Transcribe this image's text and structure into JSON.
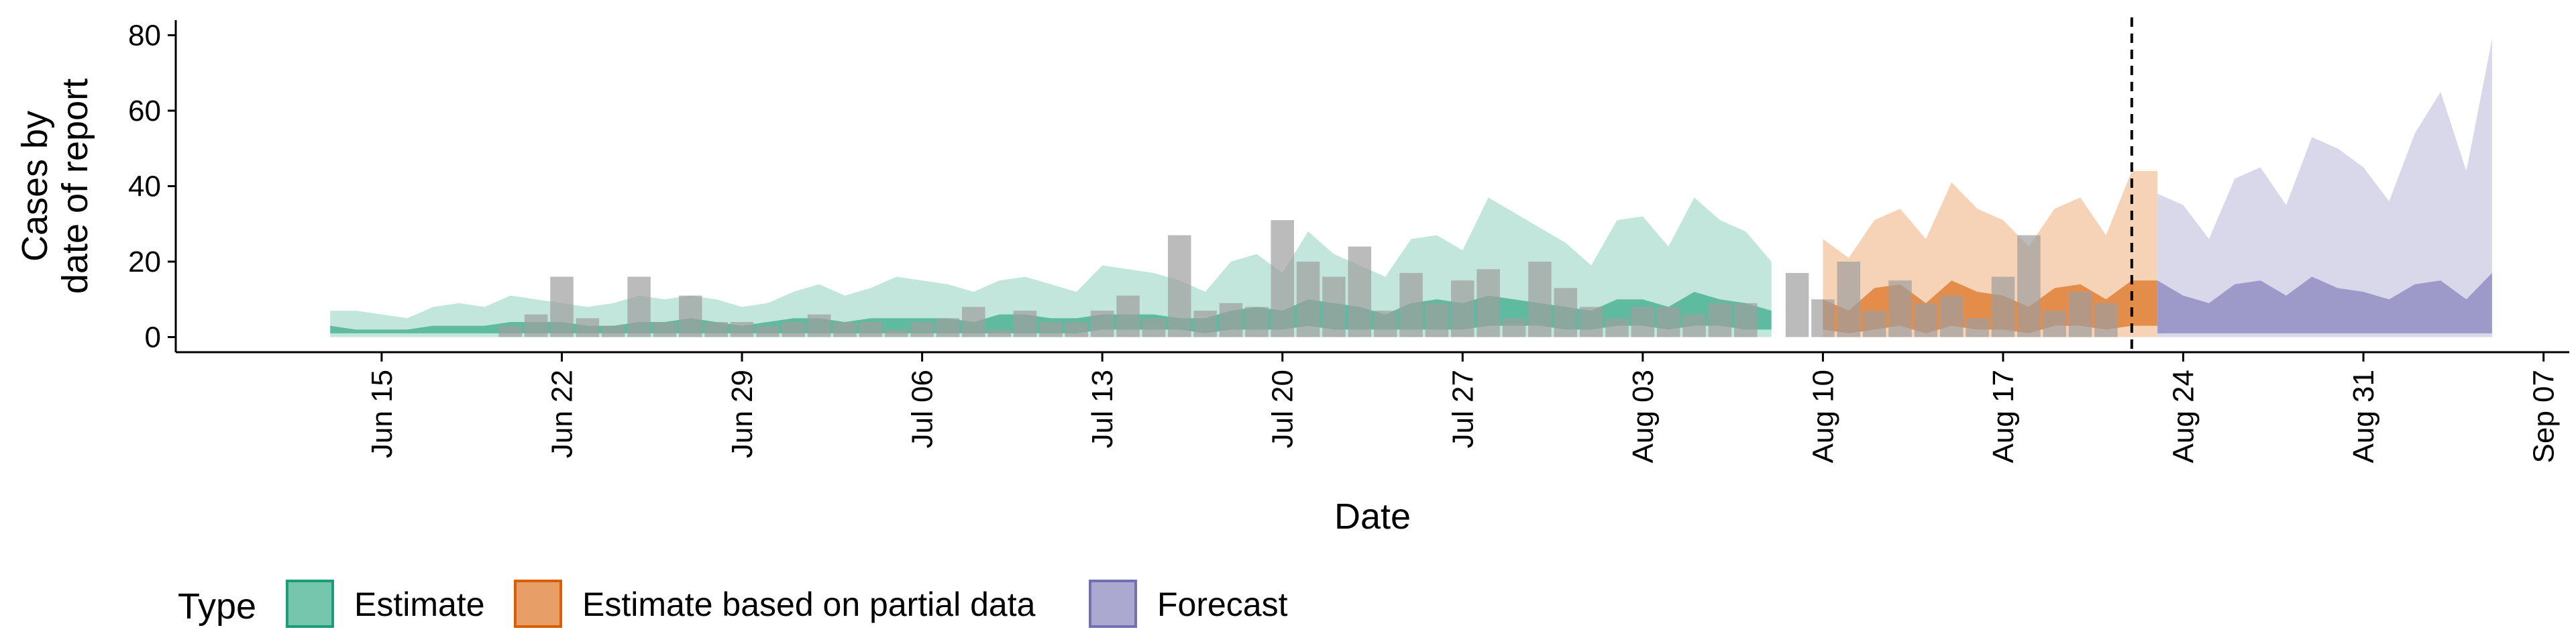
{
  "chart_data": {
    "type": "area",
    "x_axis": {
      "title": "Date",
      "ticks": [
        "Jun 15",
        "Jun 22",
        "Jun 29",
        "Jul 06",
        "Jul 13",
        "Jul 20",
        "Jul 27",
        "Aug 03",
        "Aug 10",
        "Aug 17",
        "Aug 24",
        "Aug 31",
        "Sep 07"
      ],
      "range": [
        "2020-06-07",
        "2020-09-08"
      ]
    },
    "y_axis": {
      "title_line1": "Cases by",
      "title_line2": "date of report",
      "ticks": [
        0,
        20,
        40,
        60,
        80
      ],
      "range": [
        -4,
        84
      ]
    },
    "grid": false,
    "legend": {
      "title": "Type",
      "position": "bottom",
      "items": [
        {
          "label": "Estimate",
          "fill": "#1b9e77",
          "fill_light": "#c3e6dc"
        },
        {
          "label": "Estimate based on partial data",
          "fill": "#d95f02",
          "fill_light": "#f6d3b7"
        },
        {
          "label": "Forecast",
          "fill": "#7570b3",
          "fill_light": "#d9d8ea"
        }
      ]
    },
    "vline": {
      "date": "2020-08-22",
      "style": "dashed"
    },
    "observed_color": "#9e9e9e",
    "series": [
      {
        "name": "Estimate",
        "dates": [
          "2020-06-13",
          "2020-06-14",
          "2020-06-15",
          "2020-06-16",
          "2020-06-17",
          "2020-06-18",
          "2020-06-19",
          "2020-06-20",
          "2020-06-21",
          "2020-06-22",
          "2020-06-23",
          "2020-06-24",
          "2020-06-25",
          "2020-06-26",
          "2020-06-27",
          "2020-06-28",
          "2020-06-29",
          "2020-06-30",
          "2020-07-01",
          "2020-07-02",
          "2020-07-03",
          "2020-07-04",
          "2020-07-05",
          "2020-07-06",
          "2020-07-07",
          "2020-07-08",
          "2020-07-09",
          "2020-07-10",
          "2020-07-11",
          "2020-07-12",
          "2020-07-13",
          "2020-07-14",
          "2020-07-15",
          "2020-07-16",
          "2020-07-17",
          "2020-07-18",
          "2020-07-19",
          "2020-07-20",
          "2020-07-21",
          "2020-07-22",
          "2020-07-23",
          "2020-07-24",
          "2020-07-25",
          "2020-07-26",
          "2020-07-27",
          "2020-07-28",
          "2020-07-29",
          "2020-07-30",
          "2020-07-31",
          "2020-08-01",
          "2020-08-02",
          "2020-08-03",
          "2020-08-04",
          "2020-08-05",
          "2020-08-06",
          "2020-08-07",
          "2020-08-08"
        ],
        "upper_90": [
          7,
          7,
          6,
          5,
          8,
          9,
          8,
          11,
          10,
          9,
          8,
          9,
          11,
          10,
          11,
          10,
          8,
          9,
          12,
          14,
          11,
          13,
          16,
          15,
          14,
          12,
          15,
          16,
          14,
          12,
          19,
          18,
          17,
          15,
          12,
          20,
          22,
          17,
          28,
          22,
          19,
          16,
          26,
          27,
          23,
          37,
          33,
          29,
          25,
          19,
          31,
          32,
          24,
          37,
          31,
          28,
          20
        ],
        "upper_50": [
          3,
          2,
          2,
          2,
          3,
          3,
          3,
          4,
          4,
          4,
          3,
          3,
          4,
          4,
          5,
          4,
          3,
          4,
          5,
          5,
          4,
          5,
          5,
          5,
          5,
          4,
          6,
          6,
          5,
          5,
          6,
          6,
          6,
          5,
          5,
          7,
          8,
          7,
          10,
          9,
          8,
          6,
          9,
          10,
          9,
          11,
          10,
          9,
          8,
          7,
          10,
          10,
          8,
          12,
          10,
          9,
          7
        ],
        "lower_50": [
          1,
          1,
          1,
          1,
          1,
          1,
          1,
          1,
          1,
          1,
          1,
          1,
          1,
          1,
          1,
          1,
          1,
          1,
          1,
          1,
          1,
          1,
          1,
          1,
          1,
          1,
          1,
          1,
          1,
          1,
          2,
          2,
          2,
          2,
          1,
          2,
          2,
          2,
          3,
          2,
          2,
          2,
          2,
          2,
          2,
          3,
          3,
          3,
          2,
          2,
          3,
          3,
          2,
          3,
          3,
          2,
          2
        ],
        "lower_90": [
          0,
          0,
          0,
          0,
          0,
          0,
          0,
          0,
          0,
          0,
          0,
          0,
          0,
          0,
          0,
          0,
          0,
          0,
          0,
          0,
          0,
          0,
          0,
          0,
          0,
          0,
          0,
          0,
          0,
          0,
          0,
          0,
          0,
          0,
          0,
          0,
          0,
          0,
          0,
          0,
          0,
          0,
          0,
          0,
          0,
          0,
          0,
          0,
          0,
          0,
          0,
          0,
          0,
          0,
          0,
          0,
          0
        ]
      },
      {
        "name": "Estimate based on partial data",
        "dates": [
          "2020-08-10",
          "2020-08-11",
          "2020-08-12",
          "2020-08-13",
          "2020-08-14",
          "2020-08-15",
          "2020-08-16",
          "2020-08-17",
          "2020-08-18",
          "2020-08-19",
          "2020-08-20",
          "2020-08-21",
          "2020-08-22",
          "2020-08-23"
        ],
        "upper_90": [
          26,
          21,
          31,
          34,
          26,
          41,
          34,
          31,
          24,
          34,
          37,
          27,
          44,
          44
        ],
        "upper_50": [
          10,
          7,
          13,
          14,
          9,
          15,
          12,
          11,
          8,
          13,
          14,
          10,
          15,
          15
        ],
        "lower_50": [
          2,
          1,
          2,
          3,
          1,
          3,
          2,
          2,
          1,
          3,
          3,
          2,
          3,
          3
        ],
        "lower_90": [
          0,
          0,
          0,
          0,
          0,
          0,
          0,
          0,
          0,
          0,
          0,
          0,
          0,
          0
        ]
      },
      {
        "name": "Forecast",
        "dates": [
          "2020-08-23",
          "2020-08-24",
          "2020-08-25",
          "2020-08-26",
          "2020-08-27",
          "2020-08-28",
          "2020-08-29",
          "2020-08-30",
          "2020-08-31",
          "2020-09-01",
          "2020-09-02",
          "2020-09-03",
          "2020-09-04",
          "2020-09-05"
        ],
        "upper_90": [
          38,
          35,
          26,
          42,
          45,
          35,
          53,
          50,
          45,
          36,
          54,
          65,
          44,
          79
        ],
        "upper_50": [
          15,
          11,
          9,
          14,
          15,
          11,
          16,
          13,
          12,
          10,
          14,
          15,
          10,
          17
        ],
        "lower_50": [
          1,
          1,
          1,
          1,
          1,
          1,
          1,
          1,
          1,
          1,
          1,
          1,
          1,
          1
        ],
        "lower_90": [
          0,
          0,
          0,
          0,
          0,
          0,
          0,
          0,
          0,
          0,
          0,
          0,
          0,
          0
        ]
      }
    ],
    "observed": {
      "dates": [
        "2020-06-20",
        "2020-06-21",
        "2020-06-22",
        "2020-06-23",
        "2020-06-24",
        "2020-06-25",
        "2020-06-26",
        "2020-06-27",
        "2020-06-28",
        "2020-06-29",
        "2020-06-30",
        "2020-07-01",
        "2020-07-02",
        "2020-07-03",
        "2020-07-04",
        "2020-07-05",
        "2020-07-06",
        "2020-07-07",
        "2020-07-08",
        "2020-07-09",
        "2020-07-10",
        "2020-07-11",
        "2020-07-12",
        "2020-07-13",
        "2020-07-14",
        "2020-07-15",
        "2020-07-16",
        "2020-07-17",
        "2020-07-18",
        "2020-07-19",
        "2020-07-20",
        "2020-07-21",
        "2020-07-22",
        "2020-07-23",
        "2020-07-24",
        "2020-07-25",
        "2020-07-26",
        "2020-07-27",
        "2020-07-28",
        "2020-07-29",
        "2020-07-30",
        "2020-07-31",
        "2020-08-01",
        "2020-08-02",
        "2020-08-03",
        "2020-08-04",
        "2020-08-05",
        "2020-08-06",
        "2020-08-07",
        "2020-08-08",
        "2020-08-09",
        "2020-08-10",
        "2020-08-11",
        "2020-08-12",
        "2020-08-13",
        "2020-08-14",
        "2020-08-15",
        "2020-08-16",
        "2020-08-17",
        "2020-08-18",
        "2020-08-19",
        "2020-08-20",
        "2020-08-21",
        "2020-08-22"
      ],
      "values": [
        3,
        6,
        16,
        5,
        3,
        16,
        4,
        11,
        4,
        4,
        3,
        4,
        6,
        4,
        4,
        2,
        4,
        5,
        8,
        2,
        7,
        4,
        4,
        7,
        11,
        5,
        27,
        7,
        9,
        8,
        31,
        20,
        16,
        24,
        7,
        17,
        9,
        15,
        18,
        5,
        20,
        13,
        8,
        5,
        8,
        8,
        6,
        9,
        9,
        0,
        17,
        10,
        20,
        7,
        15,
        9,
        11,
        5,
        16,
        27,
        7,
        12,
        9,
        0
      ]
    }
  }
}
